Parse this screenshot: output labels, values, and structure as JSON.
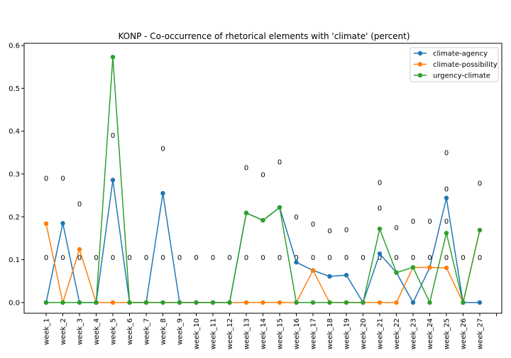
{
  "chart_data": {
    "type": "line",
    "title": "KONP - Co-occurrence of rhetorical elements with 'climate' (percent)",
    "xlabel": "",
    "ylabel": "",
    "categories": [
      "week_1",
      "week_2",
      "week_3",
      "week_4",
      "week_5",
      "week_6",
      "week_7",
      "week_8",
      "week_9",
      "week_10",
      "week_11",
      "week_12",
      "week_13",
      "week_14",
      "week_15",
      "week_16",
      "week_17",
      "week_18",
      "week_19",
      "week_20",
      "week_21",
      "week_22",
      "week_23",
      "week_24",
      "week_25",
      "week_26",
      "week_27"
    ],
    "ylim": [
      -0.025,
      0.605
    ],
    "yticks": [
      "0.0",
      "0.1",
      "0.2",
      "0.3",
      "0.4",
      "0.5",
      "0.6"
    ],
    "grid": false,
    "legend_position": "top-right",
    "series": [
      {
        "name": "climate-agency",
        "color": "#1f77b4",
        "values": [
          0,
          0.185,
          0,
          0,
          0.286,
          0,
          0,
          0.255,
          0,
          0,
          0,
          0,
          0.209,
          0.192,
          0.222,
          0.094,
          0.075,
          0.061,
          0.064,
          0,
          0.114,
          0.07,
          0,
          0.082,
          0.244,
          0,
          0
        ]
      },
      {
        "name": "climate-possibility",
        "color": "#ff7f0e",
        "values": [
          0.184,
          0,
          0.124,
          0,
          0,
          0,
          0,
          0,
          0,
          0,
          0,
          0,
          0,
          0,
          0,
          0,
          0.075,
          0,
          0,
          0,
          0,
          0,
          0.082,
          0.082,
          0.081,
          0,
          0.169
        ]
      },
      {
        "name": "urgency-climate",
        "color": "#2ca02c",
        "values": [
          0,
          0,
          0,
          0,
          0.573,
          0,
          0,
          0,
          0,
          0,
          0,
          0,
          0.209,
          0.192,
          0.222,
          0,
          0,
          0,
          0,
          0,
          0.172,
          0.07,
          0.082,
          0,
          0.162,
          0,
          0.169
        ]
      }
    ],
    "annotations": [
      {
        "x": "week_1",
        "y": 0.29,
        "text": "0"
      },
      {
        "x": "week_2",
        "y": 0.29,
        "text": "0"
      },
      {
        "x": "week_3",
        "y": 0.23,
        "text": "0"
      },
      {
        "x": "week_5",
        "y": 0.39,
        "text": "0"
      },
      {
        "x": "week_8",
        "y": 0.36,
        "text": "0"
      },
      {
        "x": "week_13",
        "y": 0.315,
        "text": "0"
      },
      {
        "x": "week_14",
        "y": 0.298,
        "text": "0"
      },
      {
        "x": "week_15",
        "y": 0.328,
        "text": "0"
      },
      {
        "x": "week_16",
        "y": 0.2,
        "text": "0"
      },
      {
        "x": "week_17",
        "y": 0.183,
        "text": "0"
      },
      {
        "x": "week_18",
        "y": 0.167,
        "text": "0"
      },
      {
        "x": "week_19",
        "y": 0.17,
        "text": "0"
      },
      {
        "x": "week_21",
        "y": 0.28,
        "text": "0"
      },
      {
        "x": "week_21",
        "y": 0.22,
        "text": "0"
      },
      {
        "x": "week_22",
        "y": 0.175,
        "text": "0"
      },
      {
        "x": "week_23",
        "y": 0.19,
        "text": "0"
      },
      {
        "x": "week_24",
        "y": 0.19,
        "text": "0"
      },
      {
        "x": "week_25",
        "y": 0.35,
        "text": "0"
      },
      {
        "x": "week_25",
        "y": 0.265,
        "text": "0"
      },
      {
        "x": "week_25",
        "y": 0.19,
        "text": "0"
      },
      {
        "x": "week_27",
        "y": 0.278,
        "text": "0"
      },
      {
        "x": "week_1",
        "y": 0.105,
        "text": "0"
      },
      {
        "x": "week_2",
        "y": 0.105,
        "text": "0"
      },
      {
        "x": "week_3",
        "y": 0.105,
        "text": "0"
      },
      {
        "x": "week_4",
        "y": 0.105,
        "text": "0"
      },
      {
        "x": "week_5",
        "y": 0.105,
        "text": "0"
      },
      {
        "x": "week_6",
        "y": 0.105,
        "text": "0"
      },
      {
        "x": "week_7",
        "y": 0.105,
        "text": "0"
      },
      {
        "x": "week_8",
        "y": 0.105,
        "text": "0"
      },
      {
        "x": "week_9",
        "y": 0.105,
        "text": "0"
      },
      {
        "x": "week_10",
        "y": 0.105,
        "text": "0"
      },
      {
        "x": "week_11",
        "y": 0.105,
        "text": "0"
      },
      {
        "x": "week_12",
        "y": 0.105,
        "text": "0"
      },
      {
        "x": "week_13",
        "y": 0.105,
        "text": "0"
      },
      {
        "x": "week_14",
        "y": 0.105,
        "text": "0"
      },
      {
        "x": "week_15",
        "y": 0.105,
        "text": "0"
      },
      {
        "x": "week_16",
        "y": 0.105,
        "text": "0"
      },
      {
        "x": "week_17",
        "y": 0.105,
        "text": "0"
      },
      {
        "x": "week_18",
        "y": 0.105,
        "text": "0"
      },
      {
        "x": "week_19",
        "y": 0.105,
        "text": "0"
      },
      {
        "x": "week_20",
        "y": 0.105,
        "text": "0"
      },
      {
        "x": "week_21",
        "y": 0.105,
        "text": "0"
      },
      {
        "x": "week_22",
        "y": 0.105,
        "text": "0"
      },
      {
        "x": "week_23",
        "y": 0.105,
        "text": "0"
      },
      {
        "x": "week_24",
        "y": 0.105,
        "text": "0"
      },
      {
        "x": "week_25",
        "y": 0.105,
        "text": "0"
      },
      {
        "x": "week_26",
        "y": 0.105,
        "text": "0"
      },
      {
        "x": "week_27",
        "y": 0.105,
        "text": "0"
      }
    ]
  }
}
